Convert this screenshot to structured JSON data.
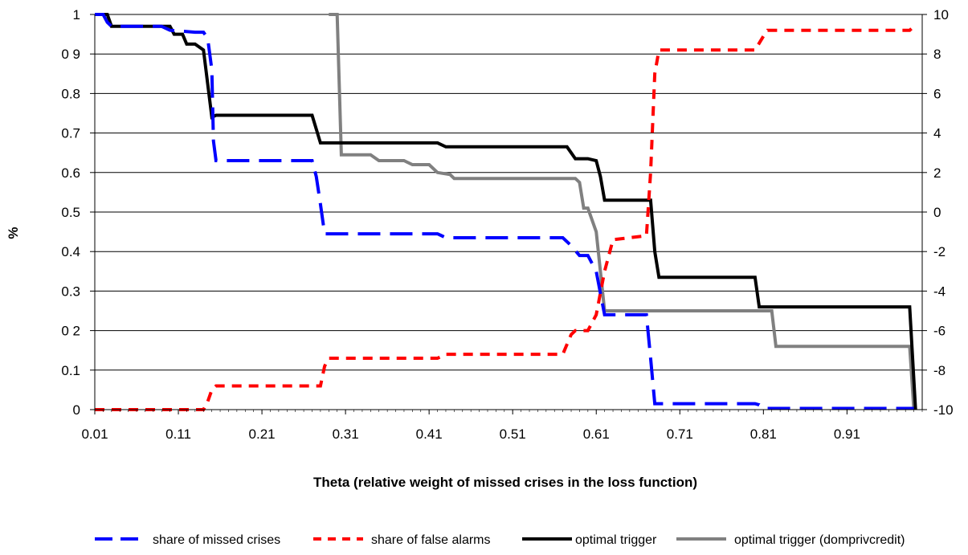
{
  "chart_data": {
    "type": "line",
    "xlabel": "Theta (relative weight of missed crises in the loss function)",
    "ylabel": "%",
    "x_ticks": [
      "0.01",
      "0.11",
      "0.21",
      "0.31",
      "0.41",
      "0.51",
      "0.61",
      "0.71",
      "0.81",
      "0.91"
    ],
    "x_tick_values": [
      0.01,
      0.11,
      0.21,
      0.31,
      0.41,
      0.51,
      0.61,
      0.71,
      0.81,
      0.91
    ],
    "xlim": [
      0.01,
      1.0
    ],
    "y_left_ticks": [
      "0",
      "0.1",
      "0 2",
      "0.3",
      "0.4",
      "0.5",
      "0.6",
      "0.7",
      "0.8",
      "0 9",
      "1"
    ],
    "ylim_left": [
      0,
      1
    ],
    "y_right_ticks": [
      "-10",
      "-8",
      "-6",
      "-4",
      "-2",
      "0",
      "2",
      "4",
      "6",
      "8",
      "10"
    ],
    "ylim_right": [
      -10,
      10
    ],
    "grid": "horizontal",
    "legend_position": "bottom",
    "series": [
      {
        "name": "share of missed crises",
        "axis": "left",
        "color": "#0000ff",
        "style": "long-dash",
        "x": [
          0.01,
          0.02,
          0.025,
          0.03,
          0.05,
          0.09,
          0.1,
          0.13,
          0.14,
          0.145,
          0.15,
          0.152,
          0.155,
          0.27,
          0.275,
          0.28,
          0.285,
          0.29,
          0.42,
          0.425,
          0.43,
          0.57,
          0.58,
          0.59,
          0.6,
          0.61,
          0.62,
          0.66,
          0.67,
          0.675,
          0.68,
          0.685,
          0.8,
          0.805,
          0.81,
          0.985,
          0.99
        ],
        "y": [
          1.0,
          1.0,
          0.98,
          0.97,
          0.97,
          0.97,
          0.96,
          0.955,
          0.955,
          0.94,
          0.86,
          0.68,
          0.63,
          0.63,
          0.59,
          0.52,
          0.445,
          0.445,
          0.445,
          0.44,
          0.435,
          0.435,
          0.415,
          0.39,
          0.39,
          0.35,
          0.24,
          0.24,
          0.24,
          0.13,
          0.015,
          0.015,
          0.015,
          0.012,
          0.003,
          0.003,
          0.003
        ]
      },
      {
        "name": "share of false alarms",
        "axis": "left",
        "color": "#ff0000",
        "style": "short-dash",
        "x": [
          0.01,
          0.13,
          0.14,
          0.145,
          0.15,
          0.155,
          0.27,
          0.28,
          0.285,
          0.29,
          0.3,
          0.42,
          0.43,
          0.44,
          0.57,
          0.58,
          0.585,
          0.6,
          0.61,
          0.62,
          0.63,
          0.67,
          0.675,
          0.68,
          0.685,
          0.8,
          0.81,
          0.815,
          0.985,
          0.99
        ],
        "y": [
          0.0,
          0.0,
          0.0,
          0.02,
          0.05,
          0.06,
          0.06,
          0.06,
          0.11,
          0.13,
          0.13,
          0.13,
          0.14,
          0.14,
          0.14,
          0.19,
          0.2,
          0.2,
          0.24,
          0.35,
          0.43,
          0.44,
          0.6,
          0.85,
          0.91,
          0.91,
          0.945,
          0.96,
          0.96,
          0.97
        ]
      },
      {
        "name": "optimal trigger",
        "axis": "right",
        "color": "#000000",
        "style": "solid",
        "x": [
          0.01,
          0.02,
          0.025,
          0.03,
          0.1,
          0.105,
          0.115,
          0.12,
          0.13,
          0.14,
          0.145,
          0.15,
          0.155,
          0.27,
          0.275,
          0.28,
          0.285,
          0.42,
          0.43,
          0.435,
          0.575,
          0.58,
          0.585,
          0.6,
          0.61,
          0.615,
          0.62,
          0.675,
          0.68,
          0.685,
          0.79,
          0.8,
          0.805,
          0.98,
          0.985,
          0.992
        ],
        "y": [
          10.0,
          10.0,
          10.0,
          9.4,
          9.4,
          9.0,
          9.0,
          8.5,
          8.5,
          8.2,
          6.5,
          4.8,
          4.9,
          4.9,
          4.2,
          3.5,
          3.5,
          3.5,
          3.3,
          3.3,
          3.3,
          3.0,
          2.7,
          2.7,
          2.6,
          1.8,
          0.6,
          0.6,
          -2.0,
          -3.3,
          -3.3,
          -3.3,
          -4.8,
          -4.8,
          -4.8,
          -10.0
        ]
      },
      {
        "name": "optimal trigger (domprivcredit)",
        "axis": "right",
        "color": "#808080",
        "style": "solid",
        "x": [
          0.29,
          0.3,
          0.305,
          0.34,
          0.35,
          0.38,
          0.39,
          0.41,
          0.42,
          0.435,
          0.44,
          0.585,
          0.59,
          0.595,
          0.6,
          0.61,
          0.62,
          0.63,
          0.81,
          0.82,
          0.825,
          0.985,
          0.99
        ],
        "y": [
          10.0,
          10.0,
          2.9,
          2.9,
          2.6,
          2.6,
          2.4,
          2.4,
          2.0,
          1.9,
          1.7,
          1.7,
          1.5,
          0.2,
          0.2,
          -1.0,
          -5.0,
          -5.0,
          -5.0,
          -5.0,
          -6.8,
          -6.8,
          -10.0
        ]
      }
    ]
  }
}
